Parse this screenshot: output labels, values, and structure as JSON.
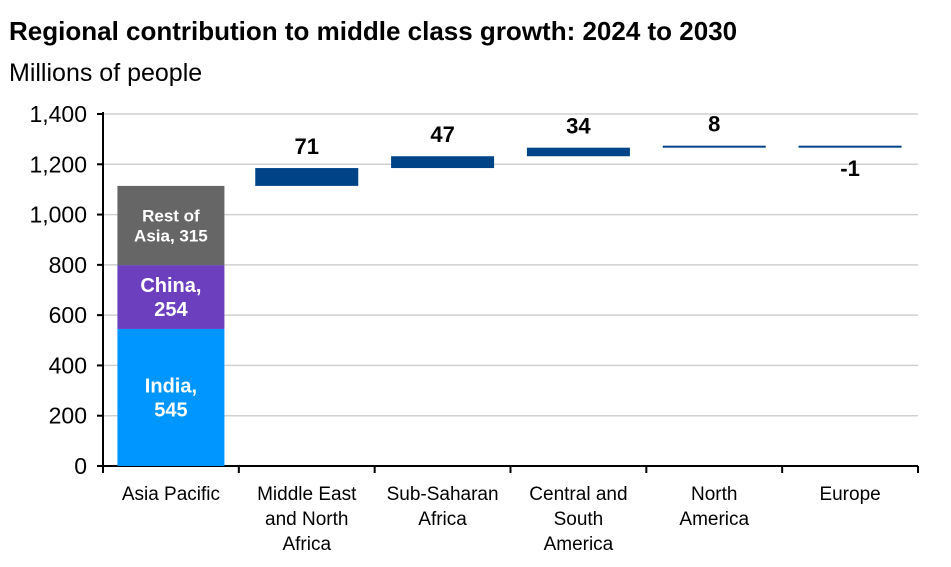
{
  "chart_data": {
    "type": "bar",
    "subtype": "waterfall",
    "title": "Regional contribution to middle class growth: 2024 to 2030",
    "ylabel": "Millions of people",
    "xlabel": "",
    "ylim": [
      0,
      1400
    ],
    "yticks": [
      0,
      200,
      400,
      600,
      800,
      1000,
      1200,
      1400
    ],
    "ytick_labels": [
      "0",
      "200",
      "400",
      "600",
      "800",
      "1,000",
      "1,200",
      "1,400"
    ],
    "grid": true,
    "categories": [
      "Asia Pacific",
      "Middle East and North Africa",
      "Sub-Saharan Africa",
      "Central and South America",
      "North America",
      "Europe"
    ],
    "category_label_lines": [
      [
        "Asia Pacific"
      ],
      [
        "Middle East",
        "and North",
        "Africa"
      ],
      [
        "Sub-Saharan",
        "Africa"
      ],
      [
        "Central and",
        "South",
        "America"
      ],
      [
        "North",
        "America"
      ],
      [
        "Europe"
      ]
    ],
    "stacked_first": [
      {
        "name": "India",
        "value": 545,
        "label_lines": [
          "India,",
          "545"
        ],
        "color": "#0096FF"
      },
      {
        "name": "China",
        "value": 254,
        "label_lines": [
          "China,",
          "254"
        ],
        "color": "#6C3FBF"
      },
      {
        "name": "Rest of Asia",
        "value": 315,
        "label_lines": [
          "Rest of",
          "Asia, 315"
        ],
        "color": "#666666"
      }
    ],
    "values": [
      1114,
      71,
      47,
      34,
      8,
      -1
    ],
    "data_labels": [
      "",
      "71",
      "47",
      "34",
      "8",
      "-1"
    ],
    "increment_color": "#004488"
  }
}
